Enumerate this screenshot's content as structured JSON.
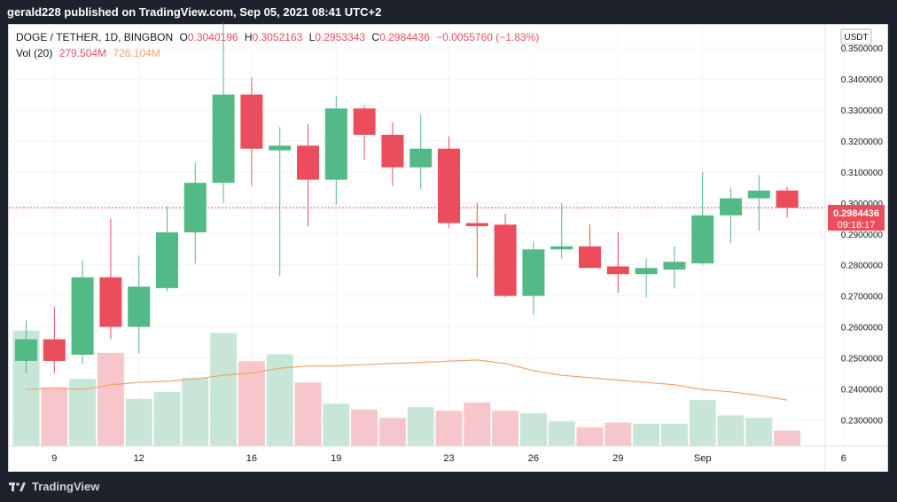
{
  "header": {
    "publisher_line": "gerald228 published on TradingView.com, Sep 05, 2021 08:41 UTC+2"
  },
  "legend": {
    "symbol": "DOGE / TETHER, 1D, BINGBON",
    "open_label": "O",
    "open": "0.3040196",
    "high_label": "H",
    "high": "0.3052163",
    "low_label": "L",
    "low": "0.2953343",
    "close_label": "C",
    "close": "0.2984436",
    "change": "−0.0055760 (−1.83%)",
    "vol_label": "Vol (20)",
    "vol": "279.504M",
    "vol_ma": "726.104M"
  },
  "currency_badge": "USDT",
  "price_tag": {
    "price": "0.2984436",
    "countdown": "09:18:17"
  },
  "footer": {
    "brand": "TradingView"
  },
  "colors": {
    "up": "#26a69a",
    "down": "#ef5350",
    "up_candle": "#53b987",
    "down_candle": "#eb4d5c",
    "vol_up": "#c8e6d8",
    "vol_down": "#f7c6cb",
    "ma": "#f0a36b",
    "grid": "#f0f3fa"
  },
  "chart_data": {
    "type": "candlestick",
    "y_axis": {
      "ticks": [
        "0.2300000",
        "0.2400000",
        "0.2500000",
        "0.2600000",
        "0.2700000",
        "0.2800000",
        "0.2900000",
        "0.3000000",
        "0.3100000",
        "0.3200000",
        "0.3300000",
        "0.3400000",
        "0.3500000"
      ],
      "range": [
        0.2215,
        0.3575
      ]
    },
    "x_axis": {
      "tick_labels": [
        {
          "label": "9",
          "date": "2021-08-09"
        },
        {
          "label": "12",
          "date": "2021-08-12"
        },
        {
          "label": "16",
          "date": "2021-08-16"
        },
        {
          "label": "19",
          "date": "2021-08-19"
        },
        {
          "label": "23",
          "date": "2021-08-23"
        },
        {
          "label": "26",
          "date": "2021-08-26"
        },
        {
          "label": "29",
          "date": "2021-08-29"
        },
        {
          "label": "Sep",
          "date": "2021-09-01"
        },
        {
          "label": "6",
          "date": "2021-09-06"
        }
      ]
    },
    "candles": [
      {
        "date": "2021-08-08",
        "o": 0.249,
        "h": 0.262,
        "l": 0.245,
        "c": 0.256
      },
      {
        "date": "2021-08-09",
        "o": 0.256,
        "h": 0.2665,
        "l": 0.245,
        "c": 0.249
      },
      {
        "date": "2021-08-10",
        "o": 0.251,
        "h": 0.2815,
        "l": 0.248,
        "c": 0.276
      },
      {
        "date": "2021-08-11",
        "o": 0.276,
        "h": 0.295,
        "l": 0.256,
        "c": 0.26
      },
      {
        "date": "2021-08-12",
        "o": 0.26,
        "h": 0.283,
        "l": 0.2515,
        "c": 0.273
      },
      {
        "date": "2021-08-13",
        "o": 0.2725,
        "h": 0.299,
        "l": 0.2715,
        "c": 0.2905
      },
      {
        "date": "2021-08-14",
        "o": 0.2905,
        "h": 0.313,
        "l": 0.2805,
        "c": 0.3065
      },
      {
        "date": "2021-08-15",
        "o": 0.3065,
        "h": 0.358,
        "l": 0.3,
        "c": 0.335
      },
      {
        "date": "2021-08-16",
        "o": 0.335,
        "h": 0.3405,
        "l": 0.3055,
        "c": 0.3175
      },
      {
        "date": "2021-08-17",
        "o": 0.317,
        "h": 0.3245,
        "l": 0.2765,
        "c": 0.3185
      },
      {
        "date": "2021-08-18",
        "o": 0.3185,
        "h": 0.3255,
        "l": 0.2925,
        "c": 0.3075
      },
      {
        "date": "2021-08-19",
        "o": 0.3075,
        "h": 0.3345,
        "l": 0.2995,
        "c": 0.3305
      },
      {
        "date": "2021-08-20",
        "o": 0.3305,
        "h": 0.3315,
        "l": 0.314,
        "c": 0.322
      },
      {
        "date": "2021-08-21",
        "o": 0.322,
        "h": 0.326,
        "l": 0.3055,
        "c": 0.3115
      },
      {
        "date": "2021-08-22",
        "o": 0.3115,
        "h": 0.3285,
        "l": 0.3045,
        "c": 0.3175
      },
      {
        "date": "2021-08-23",
        "o": 0.3175,
        "h": 0.3215,
        "l": 0.292,
        "c": 0.2935
      },
      {
        "date": "2021-08-24",
        "o": 0.2935,
        "h": 0.3,
        "l": 0.276,
        "c": 0.2925
      },
      {
        "date": "2021-08-25",
        "o": 0.293,
        "h": 0.2965,
        "l": 0.2695,
        "c": 0.27
      },
      {
        "date": "2021-08-26",
        "o": 0.27,
        "h": 0.2875,
        "l": 0.264,
        "c": 0.285
      },
      {
        "date": "2021-08-27",
        "o": 0.285,
        "h": 0.3,
        "l": 0.282,
        "c": 0.286
      },
      {
        "date": "2021-08-28",
        "o": 0.286,
        "h": 0.293,
        "l": 0.279,
        "c": 0.279
      },
      {
        "date": "2021-08-29",
        "o": 0.2795,
        "h": 0.2905,
        "l": 0.271,
        "c": 0.277
      },
      {
        "date": "2021-08-30",
        "o": 0.277,
        "h": 0.282,
        "l": 0.2695,
        "c": 0.279
      },
      {
        "date": "2021-08-31",
        "o": 0.2785,
        "h": 0.286,
        "l": 0.2725,
        "c": 0.281
      },
      {
        "date": "2021-09-01",
        "o": 0.2805,
        "h": 0.31,
        "l": 0.28,
        "c": 0.296
      },
      {
        "date": "2021-09-02",
        "o": 0.296,
        "h": 0.305,
        "l": 0.287,
        "c": 0.3015
      },
      {
        "date": "2021-09-03",
        "o": 0.3015,
        "h": 0.309,
        "l": 0.291,
        "c": 0.304
      },
      {
        "date": "2021-09-04",
        "o": 0.3040196,
        "h": 0.3052163,
        "l": 0.2953343,
        "c": 0.2984436
      }
    ],
    "volume": {
      "scale_max": 1000,
      "values": [
        980,
        500,
        570,
        790,
        400,
        460,
        580,
        960,
        720,
        780,
        540,
        360,
        310,
        240,
        330,
        300,
        370,
        300,
        280,
        210,
        160,
        200,
        190,
        190,
        390,
        260,
        240,
        130
      ],
      "ma": [
        480,
        490,
        480,
        520,
        540,
        550,
        570,
        600,
        620,
        660,
        680,
        680,
        690,
        700,
        710,
        720,
        730,
        700,
        640,
        600,
        580,
        560,
        540,
        520,
        480,
        460,
        430,
        390
      ]
    },
    "last_price_line": 0.2984436
  }
}
